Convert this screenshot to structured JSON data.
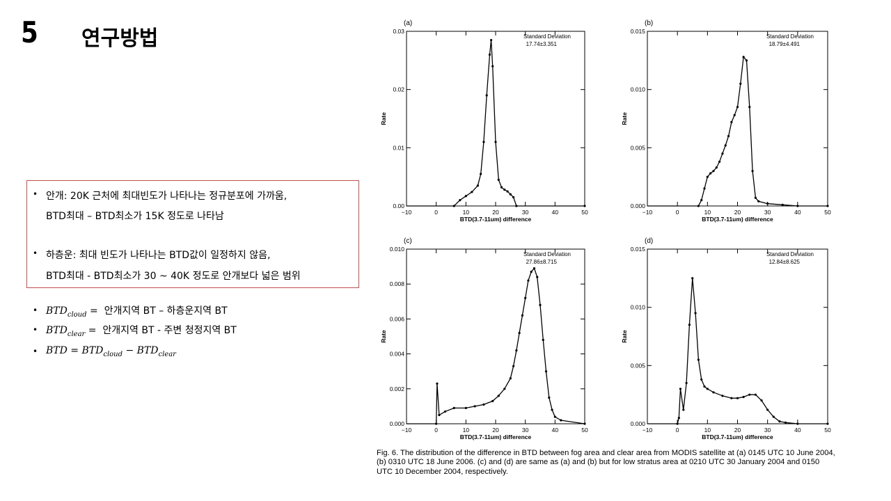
{
  "slide": {
    "number": "5",
    "title": "연구방법"
  },
  "box": {
    "lines": [
      "안개: 20K 근처에 최대빈도가 나타나는 정규분포에 가까움,",
      "BTD최대 – BTD최소가 15K 정도로 나타남",
      "하층운: 최대 빈도가 나타나는 BTD값이 일정하지 않음,",
      "BTD최대 - BTD최소가 30 ~ 40K 정도로 안개보다 넓은 범위"
    ]
  },
  "definitions": {
    "cloud": {
      "lhs": "BTD",
      "sub": "cloud",
      "eq": "=",
      "rhs": "안개지역 BT – 하층운지역 BT"
    },
    "clear": {
      "lhs": "BTD",
      "sub": "clear",
      "eq": "=",
      "rhs": "안개지역 BT - 주변 청정지역 BT"
    },
    "total": {
      "lhs": "BTD = BTD",
      "sub1": "cloud",
      "mid": " − BTD",
      "sub2": "clear"
    }
  },
  "chart_data": [
    {
      "type": "line",
      "panel": "(a)",
      "xlabel": "BTD(3.7-11um) difference",
      "ylabel": "Rate",
      "xlim": [
        -10,
        50
      ],
      "ylim": [
        0,
        0.03
      ],
      "xticks": [
        "−10",
        "0",
        "10",
        "20",
        "30",
        "40",
        "50"
      ],
      "yticks": [
        "0.00",
        "0.01",
        "0.02",
        "0.03"
      ],
      "annotation": [
        "Standard Deviation",
        "17.74±3.351"
      ],
      "x": [
        -12,
        6,
        8,
        10,
        12,
        14,
        15,
        16,
        17,
        18,
        18.5,
        19,
        20,
        21,
        22,
        23,
        24,
        25,
        26,
        27,
        50
      ],
      "values": [
        0,
        0,
        0.001,
        0.0017,
        0.0024,
        0.0035,
        0.0055,
        0.011,
        0.019,
        0.026,
        0.0285,
        0.024,
        0.011,
        0.0045,
        0.0032,
        0.0028,
        0.0025,
        0.002,
        0.0015,
        0,
        0
      ]
    },
    {
      "type": "line",
      "panel": "(b)",
      "xlabel": "BTD(3.7-11um) difference",
      "ylabel": "Rate",
      "xlim": [
        -10,
        50
      ],
      "ylim": [
        0,
        0.015
      ],
      "xticks": [
        "−10",
        "0",
        "10",
        "20",
        "30",
        "40",
        "50"
      ],
      "yticks": [
        "0.000",
        "0.005",
        "0.010",
        "0.015"
      ],
      "annotation": [
        "Standard Deviation",
        "18.79±4.491"
      ],
      "x": [
        -12,
        7,
        8,
        9,
        10,
        11,
        12,
        13,
        14,
        15,
        16,
        17,
        18,
        19,
        20,
        21,
        22,
        23,
        24,
        25,
        26,
        27,
        30,
        35,
        40,
        50
      ],
      "values": [
        0,
        0,
        0.0005,
        0.0015,
        0.0025,
        0.0028,
        0.003,
        0.0033,
        0.0038,
        0.0045,
        0.0052,
        0.006,
        0.0072,
        0.0078,
        0.0085,
        0.0105,
        0.0128,
        0.0125,
        0.0085,
        0.003,
        0.0007,
        0.0004,
        0.0002,
        0.0001,
        0,
        0
      ]
    },
    {
      "type": "line",
      "panel": "(c)",
      "xlabel": "BTD(3.7-11um) difference",
      "ylabel": "Rate",
      "xlim": [
        -10,
        50
      ],
      "ylim": [
        0,
        0.01
      ],
      "xticks": [
        "−10",
        "0",
        "10",
        "20",
        "30",
        "40",
        "50"
      ],
      "yticks": [
        "0.000",
        "0.002",
        "0.004",
        "0.006",
        "0.008",
        "0.010"
      ],
      "annotation": [
        "Standard Deviation",
        "27.86±8.715"
      ],
      "x": [
        -12,
        0,
        0.3,
        1,
        3,
        6,
        10,
        13,
        16,
        19,
        21,
        23,
        25,
        26,
        27,
        28,
        29,
        30,
        31,
        32,
        33,
        34,
        35,
        36,
        37,
        38,
        39,
        40,
        42,
        50
      ],
      "values": [
        0,
        0,
        0.0023,
        0.0005,
        0.0007,
        0.0009,
        0.0009,
        0.001,
        0.0011,
        0.0013,
        0.0016,
        0.002,
        0.0026,
        0.0033,
        0.0042,
        0.0052,
        0.0062,
        0.0072,
        0.0082,
        0.0087,
        0.0089,
        0.0084,
        0.0068,
        0.0048,
        0.003,
        0.0015,
        0.0008,
        0.0004,
        0.0002,
        0
      ]
    },
    {
      "type": "line",
      "panel": "(d)",
      "xlabel": "BTD(3.7-11um) difference",
      "ylabel": "Rate",
      "xlim": [
        -10,
        50
      ],
      "ylim": [
        0,
        0.015
      ],
      "xticks": [
        "−10",
        "0",
        "10",
        "20",
        "30",
        "40",
        "50"
      ],
      "yticks": [
        "0.000",
        "0.005",
        "0.010",
        "0.015"
      ],
      "annotation": [
        "Standard Deviation",
        "12.84±8.625"
      ],
      "x": [
        -12,
        0,
        0.5,
        1,
        2,
        3,
        4,
        5,
        6,
        7,
        8,
        9,
        10,
        12,
        15,
        18,
        20,
        22,
        24,
        26,
        28,
        30,
        32,
        34,
        36,
        40,
        50
      ],
      "values": [
        0,
        0,
        0.0005,
        0.003,
        0.0012,
        0.0035,
        0.0085,
        0.0125,
        0.0095,
        0.0055,
        0.0038,
        0.0032,
        0.003,
        0.0027,
        0.0024,
        0.0022,
        0.0022,
        0.0023,
        0.0025,
        0.0025,
        0.002,
        0.0012,
        0.0006,
        0.0002,
        0.0001,
        0,
        0
      ]
    }
  ],
  "caption": "Fig. 6.  The distribution of the difference in BTD between fog area and clear area from MODIS satellite at (a) 0145 UTC 10 June 2004, (b) 0310 UTC 18 June 2006. (c) and (d) are same as (a) and (b) but for low stratus area at 0210 UTC 30 January 2004 and 0150 UTC 10 December 2004, respectively."
}
